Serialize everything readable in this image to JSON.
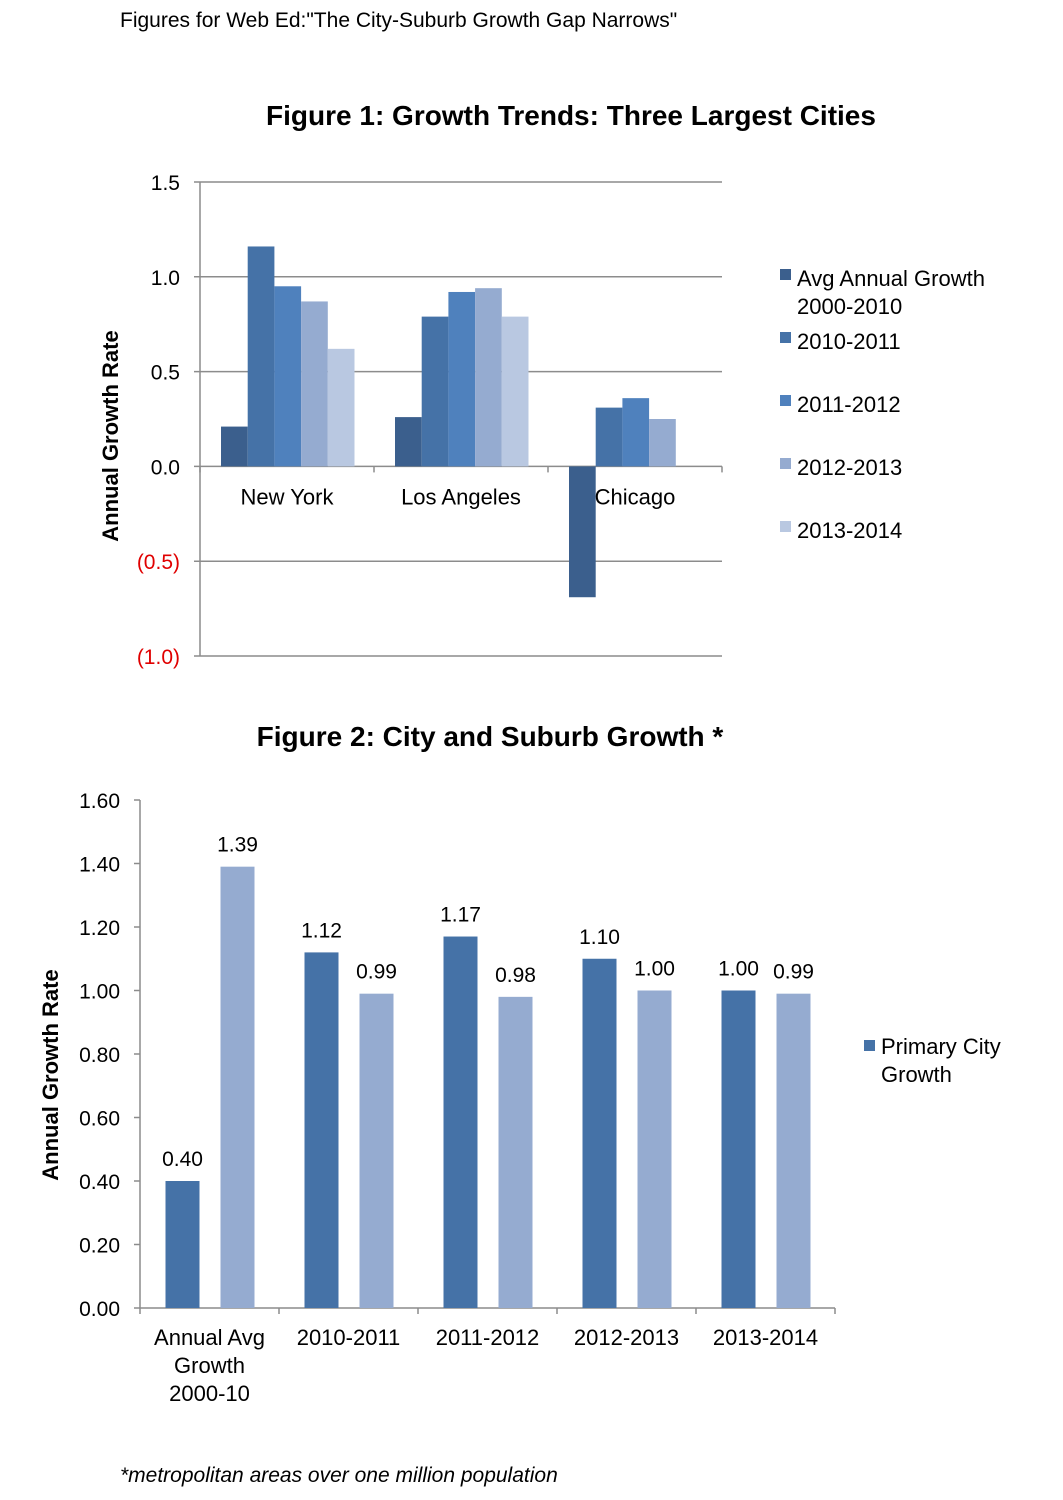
{
  "header": "Figures for Web Ed:\"The City-Suburb Growth Gap Narrows\"",
  "footnote": "*metropolitan areas over one million population",
  "chart_data": [
    {
      "type": "bar",
      "title": "Figure 1:  Growth Trends: Three Largest Cities",
      "xlabel": "",
      "ylabel": "Annual Growth Rate",
      "ylim": [
        -1.0,
        1.5
      ],
      "yticks": [
        1.5,
        1.0,
        0.5,
        0.0,
        -0.5,
        -1.0
      ],
      "ytick_labels": [
        "1.5",
        "1.0",
        "0.5",
        "0.0",
        "(0.5)",
        "(1.0)"
      ],
      "negative_tick_color": "#e00000",
      "grid": true,
      "legend": "right",
      "categories": [
        "New York",
        "Los Angeles",
        "Chicago"
      ],
      "series": [
        {
          "name": "Avg Annual Growth 2000-2010",
          "legend_lines": [
            "Avg Annual Growth",
            "2000-2010"
          ],
          "color": "#3b5f8d",
          "values": [
            0.21,
            0.26,
            -0.69
          ]
        },
        {
          "name": "2010-2011",
          "legend_lines": [
            "2010-2011"
          ],
          "color": "#4572a7",
          "values": [
            1.16,
            0.79,
            0.31
          ]
        },
        {
          "name": "2011-2012",
          "legend_lines": [
            "2011-2012"
          ],
          "color": "#4f81bd",
          "values": [
            0.95,
            0.92,
            0.36
          ]
        },
        {
          "name": "2012-2013",
          "legend_lines": [
            "2012-2013"
          ],
          "color": "#95abd0",
          "values": [
            0.87,
            0.94,
            0.25
          ]
        },
        {
          "name": "2013-2014",
          "legend_lines": [
            "2013-2014"
          ],
          "color": "#b9c8e1",
          "values": [
            0.62,
            0.79,
            null
          ]
        }
      ]
    },
    {
      "type": "bar",
      "title": "Figure 2: City and Suburb Growth *",
      "xlabel": "",
      "ylabel": "Annual Growth Rate",
      "ylim": [
        0,
        1.6
      ],
      "yticks": [
        "0.00",
        "0.20",
        "0.40",
        "0.60",
        "0.80",
        "1.00",
        "1.20",
        "1.40",
        "1.60"
      ],
      "grid": false,
      "legend": "right",
      "categories": [
        [
          "Annual Avg",
          "Growth",
          "2000-10"
        ],
        [
          "2010-2011"
        ],
        [
          "2011-2012"
        ],
        [
          "2012-2013"
        ],
        [
          "2013-2014"
        ]
      ],
      "series": [
        {
          "name": "Primary City Growth",
          "legend_lines": [
            "Primary City",
            "Growth"
          ],
          "color": "#4572a7",
          "values": [
            0.4,
            1.12,
            1.17,
            1.1,
            1.0
          ],
          "labels": [
            "0.40",
            "1.12",
            "1.17",
            "1.10",
            "1.00"
          ]
        },
        {
          "color": "#95abd0",
          "values": [
            1.39,
            0.99,
            0.98,
            1.0,
            0.99
          ],
          "labels": [
            "1.39",
            "0.99",
            "0.98",
            "1.00",
            "0.99"
          ]
        }
      ]
    }
  ]
}
